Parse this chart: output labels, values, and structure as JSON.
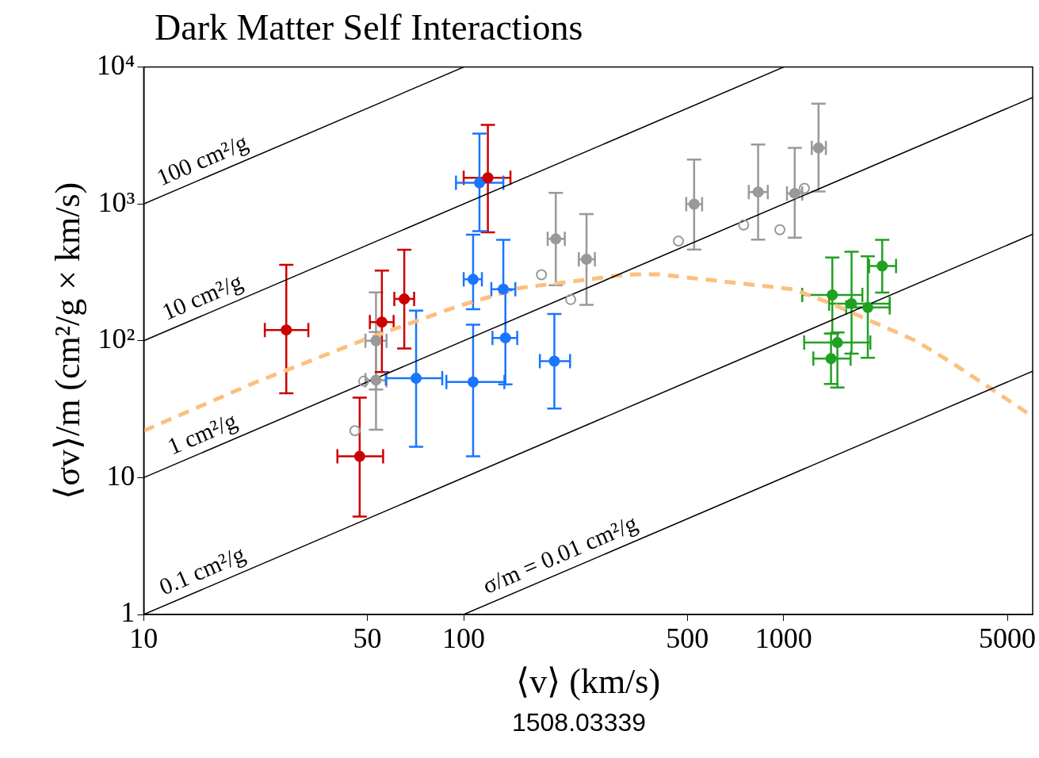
{
  "chart_data": {
    "type": "scatter",
    "title": "Dark Matter Self Interactions",
    "xlabel": "⟨v⟩ (km/s)",
    "ylabel": "⟨σv⟩/m (cm²/g × km/s)",
    "log": "xy",
    "grid": false,
    "legend": false,
    "marker": "circle",
    "xlim": [
      10,
      6000
    ],
    "xticks": [
      10,
      50,
      100,
      500,
      1000,
      5000
    ],
    "ylim": [
      1,
      10000
    ],
    "yticks": [
      1,
      10,
      {
        "value": 100,
        "label": "10²"
      },
      {
        "value": 1000,
        "label": "10³"
      },
      {
        "value": 10000,
        "label": "10⁴"
      }
    ],
    "series": [
      {
        "type": "line",
        "name": "100 cm²/g",
        "color": "#000000",
        "marker": "none",
        "line_style": "solid",
        "x": [
          10,
          100
        ],
        "values": [
          1000,
          10000
        ]
      },
      {
        "type": "line",
        "name": "10 cm²/g",
        "color": "#000000",
        "marker": "none",
        "line_style": "solid",
        "x": [
          10,
          1000
        ],
        "values": [
          100,
          10000
        ]
      },
      {
        "type": "line",
        "name": "1 cm²/g",
        "color": "#000000",
        "marker": "none",
        "line_style": "solid",
        "x": [
          10,
          6000
        ],
        "values": [
          10,
          6000
        ]
      },
      {
        "type": "line",
        "name": "0.1 cm²/g",
        "color": "#000000",
        "marker": "none",
        "line_style": "solid",
        "x": [
          10,
          6000
        ],
        "values": [
          1,
          600
        ]
      },
      {
        "type": "line",
        "name": "σ/m = 0.01 cm²/g",
        "color": "#000000",
        "marker": "none",
        "line_style": "solid",
        "x": [
          100,
          6000
        ],
        "values": [
          1,
          60
        ]
      },
      {
        "type": "line",
        "color": "#fdbf7f",
        "marker": "none",
        "line_style": "dashed",
        "x": [
          10,
          22,
          49,
          96,
          151,
          323,
          407,
          1070,
          1409,
          2588,
          3360,
          6000
        ],
        "values": [
          22,
          49,
          102,
          179,
          244,
          305,
          306,
          238,
          187,
          100,
          69,
          28
        ]
      },
      {
        "color": "#999999",
        "x": [
          48.7,
          45.7,
          175,
          216,
          469,
          750,
          973,
          1161
        ],
        "values": [
          50.6,
          22,
          304,
          200,
          535,
          701,
          648,
          1300
        ]
      },
      {
        "color": "#999999",
        "x": [
          53.2,
          53.2,
          194,
          242,
          525,
          832,
          1083,
          1285
        ],
        "values": [
          100,
          51.6,
          555,
          394,
          996,
          1222,
          1194,
          2564
        ],
        "errors": [
          [
            44,
            226
          ],
          [
            22.4,
            116
          ],
          [
            255,
            1205
          ],
          [
            183,
            844
          ],
          [
            464,
            2110
          ],
          [
            549,
            2714
          ],
          [
            566,
            2566
          ],
          [
            1233,
            5400
          ]
        ],
        "xerrors": [
          [
            49.3,
            57.4
          ],
          [
            49.3,
            57.4
          ],
          [
            183,
            207
          ],
          [
            229,
            257
          ],
          [
            496,
            556
          ],
          [
            778,
            892
          ],
          [
            1024,
            1143
          ],
          [
            1224,
            1355
          ]
        ]
      },
      {
        "color": "#cc0000",
        "x": [
          27.9,
          55.5,
          65.2,
          47.3,
          119
        ],
        "values": [
          120,
          137,
          202,
          14.3,
          1552
        ],
        "errors": [
          [
            41.4,
            359
          ],
          [
            59,
            326
          ],
          [
            88,
            462
          ],
          [
            5.2,
            38.4
          ],
          [
            620,
            3785
          ]
        ],
        "xerrors": [
          [
            23.9,
            32.7
          ],
          [
            50.9,
            60.4
          ],
          [
            60.7,
            70
          ],
          [
            40.3,
            56
          ],
          [
            100,
            140
          ]
        ]
      },
      {
        "color": "#1a75ff",
        "x": [
          71,
          112,
          107,
          107,
          133,
          135,
          192
        ],
        "values": [
          53.2,
          1426,
          281,
          50,
          238,
          105,
          71
        ],
        "errors": [
          [
            16.8,
            166
          ],
          [
            633,
            3268
          ],
          [
            170,
            596
          ],
          [
            14.3,
            131
          ],
          [
            238,
            546
          ],
          [
            48,
            234
          ],
          [
            32,
            157
          ]
        ],
        "xerrors": [
          [
            57.1,
            85.7
          ],
          [
            94.6,
            133
          ],
          [
            100,
            114
          ],
          [
            88.3,
            134
          ],
          [
            122,
            145
          ],
          [
            123,
            147
          ],
          [
            173,
            215
          ]
        ]
      },
      {
        "color": "#22a022",
        "x": [
          2032,
          1419,
          1630,
          1832,
          1472,
          1406
        ],
        "values": [
          352,
          216,
          187,
          175,
          97,
          74
        ],
        "errors": [
          [
            225,
            547
          ],
          [
            113,
            406
          ],
          [
            80.5,
            448
          ],
          [
            75,
            415
          ],
          [
            45.6,
            115
          ],
          [
            48.3,
            113
          ]
        ],
        "xerrors": [
          [
            1849,
            2245
          ],
          [
            1143,
            1762
          ],
          [
            1387,
            2145
          ],
          [
            1568,
            2145
          ],
          [
            1159,
            1866
          ],
          [
            1238,
            1619
          ]
        ]
      }
    ],
    "annotations": [
      "1508.03339"
    ]
  }
}
